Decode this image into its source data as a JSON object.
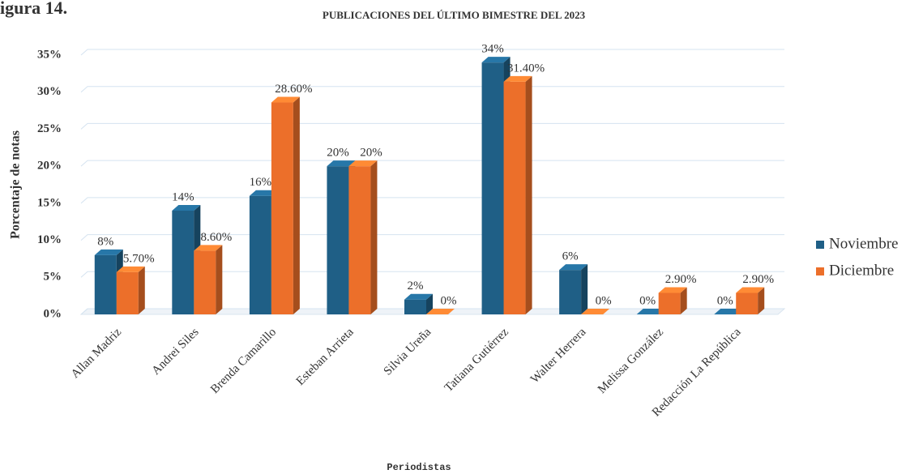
{
  "caption": "igura 14.",
  "chart_data": {
    "type": "bar3d",
    "title": "PUBLICACIONES DEL ÚLTIMO BIMESTRE DEL 2023",
    "ylabel": "Porcentaje de notas",
    "xlabel": "Periodistas",
    "categories": [
      "Allan Madriz",
      "Andrei Siles",
      "Brenda Camarillo",
      "Esteban Arrieta",
      "Silvia Ureña",
      "Tatiana Gutiérrez",
      "Walter Herrera",
      "Melissa González",
      "Redacción La República"
    ],
    "series": [
      {
        "name": "Noviembre",
        "color": "#1f5f86",
        "values": [
          8,
          14,
          16,
          20,
          2,
          34,
          6,
          0,
          0
        ],
        "value_labels": [
          "8%",
          "14%",
          "16%",
          "20%",
          "2%",
          "34%",
          "6%",
          "0%",
          "0%"
        ]
      },
      {
        "name": "Diciembre",
        "color": "#ec6f2a",
        "values": [
          5.7,
          8.6,
          28.6,
          20,
          0,
          31.4,
          0,
          2.9,
          2.9
        ],
        "value_labels": [
          "5.70%",
          "8.60%",
          "28.60%",
          "20%",
          "0%",
          "31.40%",
          "0%",
          "2.90%",
          "2.90%"
        ]
      }
    ],
    "ylim": [
      0,
      35
    ],
    "yticks": [
      {
        "value": 0,
        "label": "0%"
      },
      {
        "value": 5,
        "label": "5%"
      },
      {
        "value": 10,
        "label": "10%"
      },
      {
        "value": 15,
        "label": "15%"
      },
      {
        "value": 20,
        "label": "20%"
      },
      {
        "value": 25,
        "label": "25%"
      },
      {
        "value": 30,
        "label": "30%"
      },
      {
        "value": 35,
        "label": "35%"
      }
    ],
    "grid": true,
    "legend": "right"
  }
}
